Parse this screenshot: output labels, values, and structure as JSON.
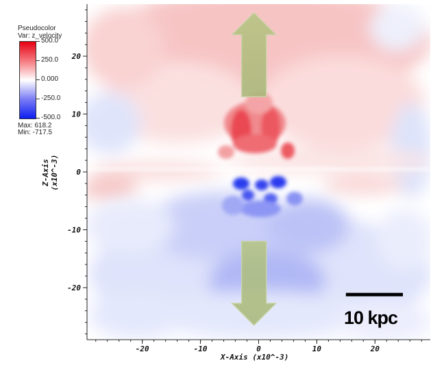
{
  "legend": {
    "plot_type": "Pseudocolor",
    "variable": "Var: z_velocity",
    "ticks": [
      "500.0",
      "250.0",
      "0.000",
      "-250.0",
      "-500.0"
    ],
    "max": "Max:  618.2",
    "min": "Min:  -717.5",
    "colormap": [
      "#0d1ef0",
      "#7a7cf5",
      "#ffffff",
      "#f57a80",
      "#e60012"
    ]
  },
  "chart_data": {
    "type": "heatmap",
    "title": "",
    "xlabel": "X-Axis  (x10^-3)",
    "ylabel": "Z-Axis\n(x10^-3)",
    "xlim": [
      -29.5,
      29.5
    ],
    "ylim": [
      -29,
      29
    ],
    "xticks": [
      -20,
      -10,
      0,
      10,
      20
    ],
    "xtick_labels": [
      "-20",
      "-10",
      "0",
      "10",
      "20"
    ],
    "yticks": [
      20,
      10,
      0,
      -10,
      -20
    ],
    "ytick_labels": [
      "20",
      "10",
      "0",
      "-10",
      "-20"
    ],
    "color_range": [
      -500,
      500
    ],
    "data_max": 618.2,
    "data_min": -717.5,
    "annotations": {
      "arrow_up": {
        "x": -0.8,
        "from_z": 13,
        "to_z": 27.5
      },
      "arrow_down": {
        "x": -0.8,
        "from_z": -12,
        "to_z": -26.5
      },
      "scalebar": {
        "x_start": 15,
        "x_end": 24.8,
        "z": -21.2,
        "label": "10 kpc"
      }
    }
  }
}
